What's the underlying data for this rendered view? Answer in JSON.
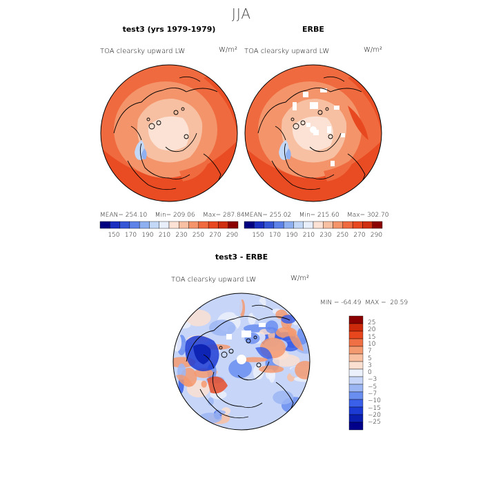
{
  "figure": {
    "season": "JJA"
  },
  "panels": [
    {
      "title": "test3 (yrs 1979-1979)",
      "variable": "TOA clearsky upward LW",
      "units": "W/m²",
      "stats": "MEAN= 254.10    Min= 209.06    Max= 287.84"
    },
    {
      "title": "ERBE",
      "variable": "TOA clearsky upward LW",
      "units": "W/m²",
      "stats": "MEAN= 255.02    Min= 215.60    Max= 302.70"
    },
    {
      "title": "test3 - ERBE",
      "variable": "TOA clearsky upward LW",
      "units": "W/m²",
      "stats": "MIN = -64.49  MAX =  20.59"
    }
  ],
  "colors": {
    "abs_scale": [
      "#000080",
      "#1a2fbf",
      "#3557d6",
      "#5d82e8",
      "#8fb0f0",
      "#c3d7f6",
      "#e8eefa",
      "#fbe2d4",
      "#f8c0a2",
      "#f4946a",
      "#ef6a3e",
      "#e84820",
      "#d02e10",
      "#8b0000"
    ],
    "diff_scale": [
      "#00008b",
      "#0a1fb0",
      "#1b3bd4",
      "#3a5fe8",
      "#6a8ef0",
      "#9cb6f4",
      "#c7d6f8",
      "#ecf0fb",
      "#fbe0d2",
      "#f8bfa1",
      "#f49a70",
      "#ef7044",
      "#e8461c",
      "#cc2a0a",
      "#8b0000"
    ]
  },
  "chart_data": [
    {
      "type": "heatmap",
      "title": "test3 (yrs 1979-1979)",
      "ylabel": "TOA clearsky upward LW",
      "units": "W/m²",
      "projection": "north polar stereographic",
      "colorbar_ticks": [
        "150",
        "170",
        "190",
        "210",
        "230",
        "250",
        "270",
        "290"
      ],
      "mean": 254.1,
      "min": 209.06,
      "max": 287.84
    },
    {
      "type": "heatmap",
      "title": "ERBE",
      "ylabel": "TOA clearsky upward LW",
      "units": "W/m²",
      "projection": "north polar stereographic",
      "colorbar_ticks": [
        "150",
        "170",
        "190",
        "210",
        "230",
        "250",
        "270",
        "290"
      ],
      "mean": 255.02,
      "min": 215.6,
      "max": 302.7
    },
    {
      "type": "heatmap",
      "title": "test3 - ERBE",
      "ylabel": "TOA clearsky upward LW",
      "units": "W/m²",
      "projection": "north polar stereographic",
      "colorbar_ticks": [
        "25",
        "20",
        "15",
        "10",
        "7",
        "5",
        "3",
        "0",
        "−3",
        "−5",
        "−7",
        "−10",
        "−15",
        "−20",
        "−25"
      ],
      "min": -64.49,
      "max": 20.59
    }
  ]
}
